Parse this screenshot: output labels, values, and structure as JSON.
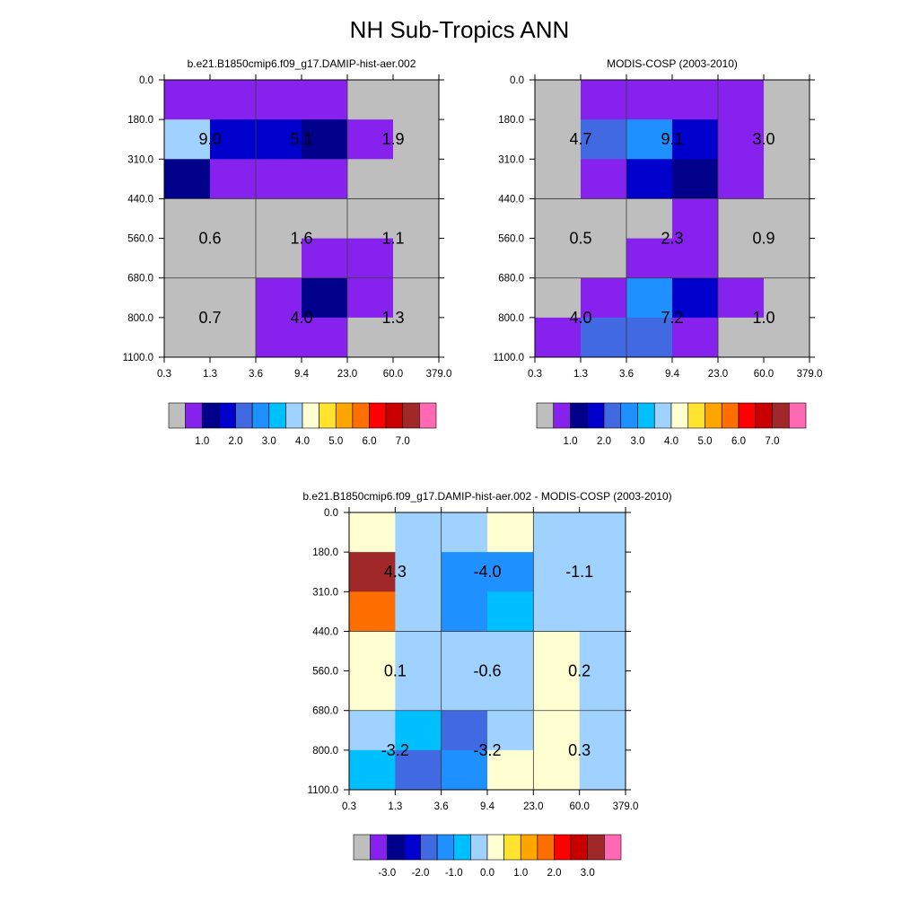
{
  "main_title": "NH Sub-Tropics ANN",
  "x_tick_labels": [
    "0.3",
    "1.3",
    "3.6",
    "9.4",
    "23.0",
    "60.0",
    "379.0"
  ],
  "y_tick_labels": [
    "0.0",
    "180.0",
    "310.0",
    "440.0",
    "560.0",
    "680.0",
    "800.0",
    "1100.0"
  ],
  "chart_data": [
    {
      "type": "heatmap",
      "title": "b.e21.B1850cmip6.f09_g17.DAMIP-hist-aer.002",
      "x_edges": [
        "0.3",
        "1.3",
        "3.6",
        "9.4",
        "23.0",
        "60.0",
        "379.0"
      ],
      "y_edges": [
        "0.0",
        "180.0",
        "310.0",
        "440.0",
        "560.0",
        "680.0",
        "800.0",
        "1100.0"
      ],
      "values": [
        [
          0.5,
          0.5,
          0.5,
          0.5,
          null,
          null
        ],
        [
          3.6,
          1.8,
          1.8,
          1.2,
          0.5,
          null
        ],
        [
          1.2,
          0.5,
          0.5,
          0.5,
          null,
          null
        ],
        [
          null,
          null,
          null,
          null,
          null,
          null
        ],
        [
          null,
          null,
          null,
          0.5,
          0.5,
          null
        ],
        [
          null,
          null,
          0.5,
          1.2,
          0.5,
          null
        ],
        [
          null,
          null,
          0.5,
          0.5,
          null,
          null
        ]
      ],
      "group_totals": [
        [
          "9.0",
          "5.1",
          "1.9"
        ],
        [
          "0.6",
          "1.6",
          "1.1"
        ],
        [
          "0.7",
          "4.0",
          "1.3"
        ]
      ],
      "colorbar": {
        "colors": [
          "#bebebe",
          "#8722ee",
          "#00008b",
          "#0000cd",
          "#4169e1",
          "#1e90ff",
          "#00bfff",
          "#a0d2ff",
          "#ffffd1",
          "#ffe32f",
          "#ffa500",
          "#ff6e00",
          "#ff0000",
          "#c80000",
          "#a02828",
          "#ff69b4"
        ],
        "tick_labels": [
          "1.0",
          "2.0",
          "3.0",
          "4.0",
          "5.0",
          "6.0",
          "7.0"
        ]
      }
    },
    {
      "type": "heatmap",
      "title": "MODIS-COSP (2003-2010)",
      "x_edges": [
        "0.3",
        "1.3",
        "3.6",
        "9.4",
        "23.0",
        "60.0",
        "379.0"
      ],
      "y_edges": [
        "0.0",
        "180.0",
        "310.0",
        "440.0",
        "560.0",
        "680.0",
        "800.0",
        "1100.0"
      ],
      "values": [
        [
          null,
          0.5,
          0.5,
          0.5,
          0.5,
          null
        ],
        [
          null,
          2.2,
          2.8,
          1.5,
          0.5,
          null
        ],
        [
          null,
          0.5,
          1.5,
          1.2,
          0.5,
          null
        ],
        [
          null,
          null,
          null,
          0.5,
          null,
          null
        ],
        [
          null,
          null,
          0.5,
          0.5,
          null,
          null
        ],
        [
          null,
          0.5,
          2.8,
          1.8,
          0.5,
          null
        ],
        [
          0.5,
          2.2,
          2.2,
          0.5,
          null,
          null
        ]
      ],
      "group_totals": [
        [
          "4.7",
          "9.1",
          "3.0"
        ],
        [
          "0.5",
          "2.3",
          "0.9"
        ],
        [
          "4.0",
          "7.2",
          "1.0"
        ]
      ],
      "colorbar": {
        "colors": [
          "#bebebe",
          "#8722ee",
          "#00008b",
          "#0000cd",
          "#4169e1",
          "#1e90ff",
          "#00bfff",
          "#a0d2ff",
          "#ffffd1",
          "#ffe32f",
          "#ffa500",
          "#ff6e00",
          "#ff0000",
          "#c80000",
          "#a02828",
          "#ff69b4"
        ],
        "tick_labels": [
          "1.0",
          "2.0",
          "3.0",
          "4.0",
          "5.0",
          "6.0",
          "7.0"
        ]
      }
    },
    {
      "type": "heatmap",
      "title": "b.e21.B1850cmip6.f09_g17.DAMIP-hist-aer.002 - MODIS-COSP (2003-2010)",
      "x_edges": [
        "0.3",
        "1.3",
        "3.6",
        "9.4",
        "23.0",
        "60.0",
        "379.0"
      ],
      "y_edges": [
        "0.0",
        "180.0",
        "310.0",
        "440.0",
        "560.0",
        "680.0",
        "800.0",
        "1100.0"
      ],
      "values": [
        [
          0.2,
          -0.2,
          -0.2,
          0.2,
          -0.2,
          -0.2
        ],
        [
          3.2,
          -0.2,
          -1.2,
          -1.2,
          -0.2,
          -0.2
        ],
        [
          1.7,
          -0.2,
          -1.2,
          -0.7,
          -0.2,
          -0.2
        ],
        [
          0.2,
          -0.2,
          -0.2,
          -0.2,
          0.2,
          -0.2
        ],
        [
          0.2,
          -0.2,
          -0.2,
          -0.2,
          0.2,
          -0.2
        ],
        [
          -0.2,
          -0.7,
          -1.7,
          -0.2,
          0.2,
          -0.2
        ],
        [
          -0.7,
          -1.7,
          -1.2,
          0.2,
          0.2,
          -0.2
        ]
      ],
      "group_totals": [
        [
          "4.3",
          "-4.0",
          "-1.1"
        ],
        [
          "0.1",
          "-0.6",
          "0.2"
        ],
        [
          "-3.2",
          "-3.2",
          "0.3"
        ]
      ],
      "colorbar": {
        "colors": [
          "#bebebe",
          "#8722ee",
          "#00008b",
          "#0000cd",
          "#4169e1",
          "#1e90ff",
          "#00bfff",
          "#a0d2ff",
          "#ffffd1",
          "#ffe32f",
          "#ffa500",
          "#ff6e00",
          "#ff0000",
          "#c80000",
          "#a02828",
          "#ff69b4"
        ],
        "tick_labels": [
          "-3.0",
          "-2.0",
          "-1.0",
          "0.0",
          "1.0",
          "2.0",
          "3.0"
        ]
      }
    }
  ]
}
